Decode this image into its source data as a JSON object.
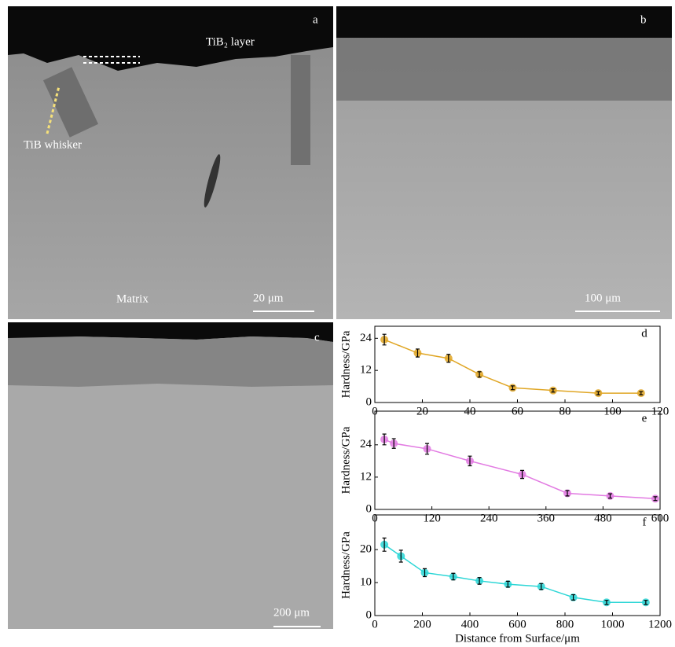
{
  "images": {
    "a": {
      "label": "a",
      "layer": "TiB₂ layer",
      "whisker": "TiB whisker",
      "matrix": "Matrix",
      "scale": "20 μm"
    },
    "b": {
      "label": "b",
      "scale": "100 μm"
    },
    "c": {
      "label": "c",
      "scale": "200 μm"
    }
  },
  "chart_data": [
    {
      "type": "line",
      "label": "d",
      "ylabel": "Hardness/GPa",
      "x": [
        4,
        18,
        31,
        44,
        58,
        75,
        94,
        112
      ],
      "series": [
        {
          "color": "#e0a624",
          "values": [
            23.5,
            18.5,
            16.5,
            10.5,
            5.5,
            4.5,
            3.5,
            3.5
          ],
          "errors": [
            2,
            1.5,
            1.5,
            1,
            0.7,
            0.6,
            0.6,
            0.6
          ]
        }
      ],
      "xlim": [
        0,
        120
      ],
      "xticks": [
        0,
        20,
        40,
        60,
        80,
        100,
        120
      ],
      "ylim": [
        0,
        28.5
      ],
      "yticks": [
        0,
        12,
        24
      ]
    },
    {
      "type": "line",
      "label": "e",
      "ylabel": "Hardness/GPa",
      "x": [
        20,
        40,
        110,
        200,
        310,
        405,
        495,
        590
      ],
      "series": [
        {
          "color": "#e27ae2",
          "values": [
            26,
            24.5,
            22.5,
            18,
            13,
            6,
            5,
            4
          ],
          "errors": [
            2,
            1.8,
            2,
            1.8,
            1.5,
            1,
            0.8,
            0.7
          ]
        }
      ],
      "xlim": [
        0,
        600
      ],
      "xticks": [
        0,
        120,
        240,
        360,
        480,
        600
      ],
      "ylim": [
        0,
        36.5
      ],
      "yticks": [
        0,
        12,
        24
      ]
    },
    {
      "type": "line",
      "label": "f",
      "ylabel": "Hardness/GPa",
      "xlabel": "Distance from Surface/μm",
      "x": [
        40,
        110,
        210,
        330,
        440,
        560,
        700,
        835,
        975,
        1140
      ],
      "series": [
        {
          "color": "#2cd6d6",
          "values": [
            21.5,
            18,
            13,
            11.8,
            10.5,
            9.5,
            8.8,
            5.5,
            4,
            4
          ],
          "errors": [
            2,
            1.8,
            1.2,
            1,
            1,
            0.9,
            0.9,
            0.8,
            0.6,
            0.6
          ]
        }
      ],
      "xlim": [
        0,
        1200
      ],
      "xticks": [
        0,
        200,
        400,
        600,
        800,
        1000,
        1200
      ],
      "ylim": [
        0,
        30.5
      ],
      "yticks": [
        0,
        10,
        20
      ]
    }
  ]
}
